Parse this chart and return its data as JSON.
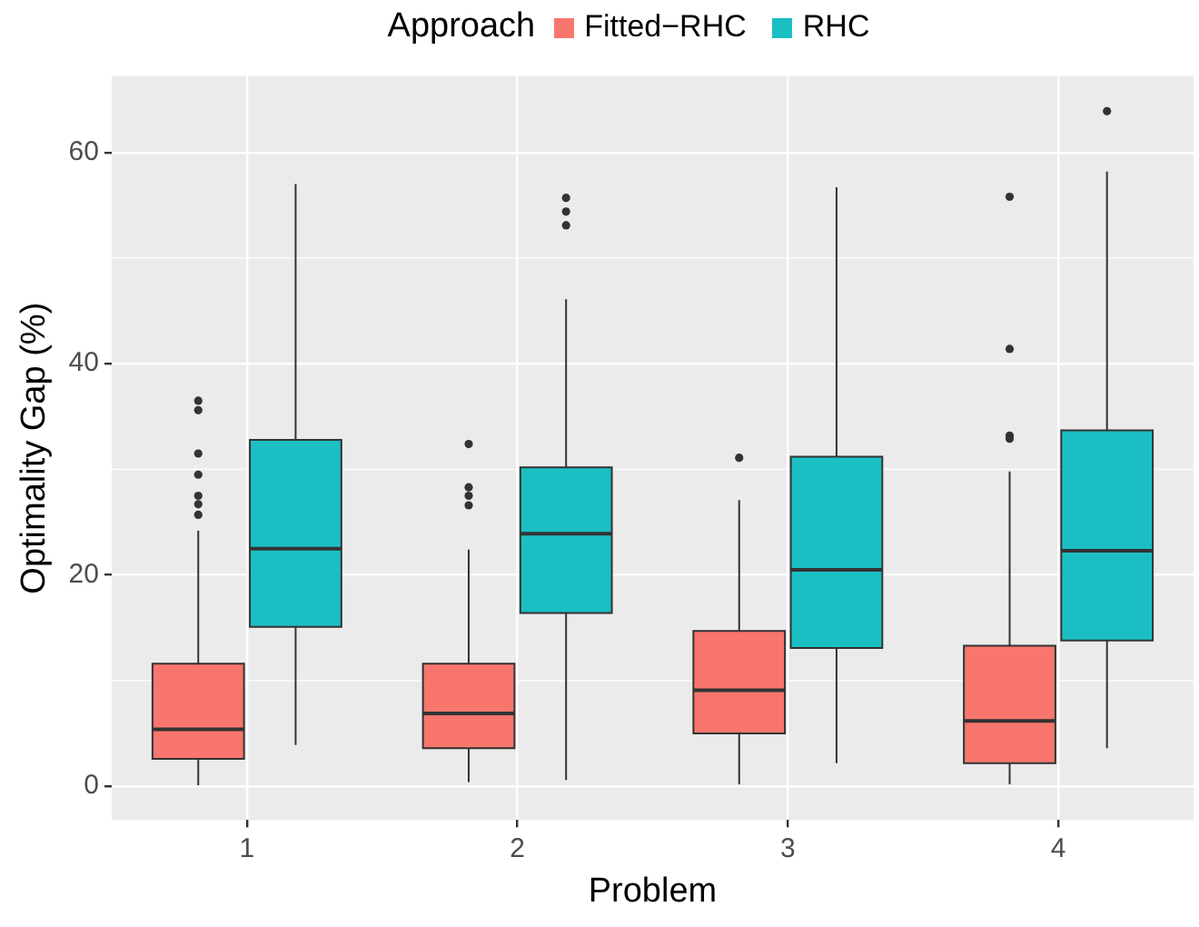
{
  "chart_data": {
    "type": "box",
    "xlabel": "Problem",
    "ylabel": "Optimality Gap (%)",
    "legend_title": "Approach",
    "legend": "top",
    "grid": true,
    "categories": [
      "1",
      "2",
      "3",
      "4"
    ],
    "ylim": [
      -3.2,
      67.2
    ],
    "yticks": [
      0,
      20,
      40,
      60
    ],
    "series": [
      {
        "name": "Fitted−RHC",
        "color": "#f8766d",
        "boxes": [
          {
            "low": 0.1,
            "q1": 2.6,
            "median": 5.4,
            "q3": 11.6,
            "high": 24.2,
            "outliers": [
              36.5,
              35.6,
              31.5,
              29.5,
              27.5,
              26.7,
              25.7
            ]
          },
          {
            "low": 0.4,
            "q1": 3.6,
            "median": 6.9,
            "q3": 11.6,
            "high": 22.4,
            "outliers": [
              32.4,
              28.3,
              27.5,
              26.6
            ]
          },
          {
            "low": 0.2,
            "q1": 5.0,
            "median": 9.1,
            "q3": 14.7,
            "high": 27.1,
            "outliers": [
              31.1
            ]
          },
          {
            "low": 0.2,
            "q1": 2.2,
            "median": 6.2,
            "q3": 13.3,
            "high": 29.8,
            "outliers": [
              55.8,
              41.4,
              33.2,
              32.9
            ]
          }
        ]
      },
      {
        "name": "RHC",
        "color": "#1bbfc3",
        "boxes": [
          {
            "low": 3.9,
            "q1": 15.1,
            "median": 22.5,
            "q3": 32.8,
            "high": 57.0
          },
          {
            "low": 0.6,
            "q1": 16.4,
            "median": 23.9,
            "q3": 30.2,
            "high": 46.1,
            "outliers": [
              55.7,
              54.4,
              53.1
            ]
          },
          {
            "low": 2.2,
            "q1": 13.1,
            "median": 20.5,
            "q3": 31.2,
            "high": 56.7
          },
          {
            "low": 3.6,
            "q1": 13.8,
            "median": 22.3,
            "q3": 33.7,
            "high": 58.2,
            "outliers": [
              63.9
            ]
          }
        ]
      }
    ]
  }
}
